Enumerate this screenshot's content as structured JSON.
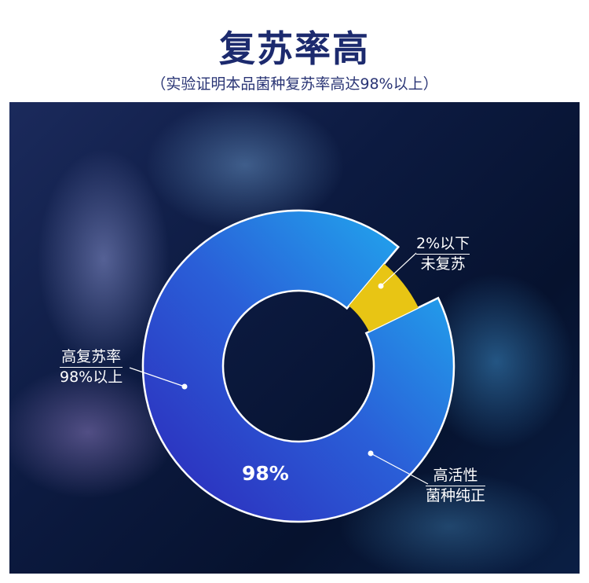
{
  "header": {
    "title": "复苏率高",
    "subtitle": "（实验证明本品菌种复苏率高达98%以上）"
  },
  "labels": {
    "left": {
      "line1": "高复苏率",
      "line2": "98%以上"
    },
    "top_right": {
      "line1": "2%以下",
      "line2": "未复苏"
    },
    "bottom_right": {
      "line1": "高活性",
      "line2": "菌种纯正"
    },
    "center_value": "98%"
  },
  "chart_data": {
    "type": "pie",
    "variant": "donut",
    "categories": [
      "高复苏率",
      "未复苏"
    ],
    "values": [
      98,
      2
    ],
    "colors": [
      "#2a7be0",
      "#e8c514"
    ]
  }
}
